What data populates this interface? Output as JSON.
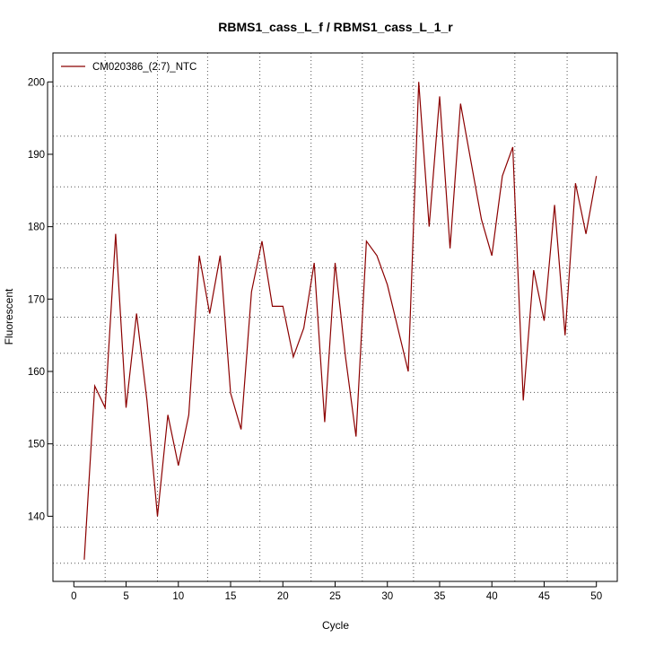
{
  "chart_data": {
    "type": "line",
    "title": "RBMS1_cass_L_f / RBMS1_cass_L_1_r",
    "xlabel": "Cycle",
    "ylabel": "Fluorescent",
    "xlim": [
      -2,
      52
    ],
    "ylim": [
      131,
      204
    ],
    "xticks": [
      0,
      5,
      10,
      15,
      20,
      25,
      30,
      35,
      40,
      45,
      50
    ],
    "yticks": [
      140,
      150,
      160,
      170,
      180,
      190,
      200
    ],
    "vgrid": [
      3,
      8,
      12.8,
      17.8,
      22.7,
      27.6,
      32.5,
      42.2,
      47.2
    ],
    "hgrid": [
      133.5,
      138.5,
      144.3,
      149.8,
      157.1,
      162.5,
      167.5,
      174.3,
      180.4,
      185.5,
      192.5,
      199.4
    ],
    "grid": "dotted",
    "legend_position": "top-left",
    "series": [
      {
        "name": "CM020386_(2:7)_NTC",
        "color": "#8b0000",
        "x": [
          1,
          2,
          3,
          4,
          5,
          6,
          7,
          8,
          9,
          10,
          11,
          12,
          13,
          14,
          15,
          16,
          17,
          18,
          19,
          20,
          21,
          22,
          23,
          24,
          25,
          26,
          27,
          28,
          29,
          30,
          31,
          32,
          33,
          34,
          35,
          36,
          37,
          38,
          39,
          40,
          41,
          42,
          43,
          44,
          45,
          46,
          47,
          48,
          49,
          50
        ],
        "values": [
          134,
          158,
          155,
          179,
          155,
          168,
          156,
          140,
          154,
          147,
          154,
          176,
          168,
          176,
          157,
          152,
          171,
          178,
          169,
          169,
          162,
          166,
          175,
          153,
          175,
          162,
          151,
          178,
          176,
          172,
          166,
          160,
          200,
          180,
          198,
          177,
          197,
          189,
          181,
          176,
          187,
          191,
          156,
          174,
          167,
          183,
          165,
          186,
          179,
          187
        ]
      }
    ]
  }
}
